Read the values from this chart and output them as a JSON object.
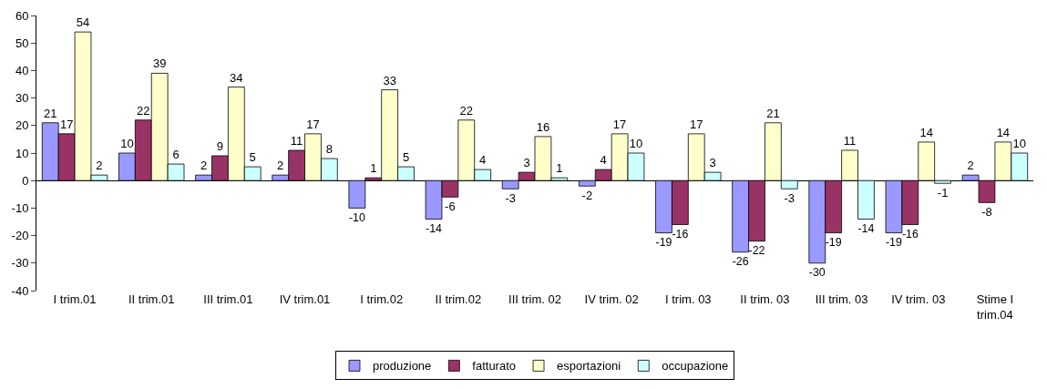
{
  "chart_data": {
    "type": "bar",
    "categories": [
      "I trim.01",
      "II trim.01",
      "III trim.01",
      "IV trim.01",
      "I trim.02",
      "II trim.02",
      "III trim. 02",
      "IV trim. 02",
      "I trim. 03",
      "II trim. 03",
      "III trim. 03",
      "IV trim. 03",
      "Stime I trim.04"
    ],
    "series": [
      {
        "name": "produzione",
        "color": "#9999ff",
        "values": [
          21,
          10,
          2,
          2,
          -10,
          -14,
          -3,
          -2,
          -19,
          -26,
          -30,
          -19,
          2
        ]
      },
      {
        "name": "fatturato",
        "color": "#993366",
        "values": [
          17,
          22,
          9,
          11,
          1,
          -6,
          3,
          4,
          -16,
          -22,
          -19,
          -16,
          -8
        ]
      },
      {
        "name": "esportazioni",
        "color": "#ffffcc",
        "values": [
          54,
          39,
          34,
          17,
          33,
          22,
          16,
          17,
          17,
          21,
          11,
          14,
          14
        ]
      },
      {
        "name": "occupazione",
        "color": "#ccffff",
        "values": [
          2,
          6,
          5,
          8,
          5,
          4,
          1,
          10,
          3,
          -3,
          -14,
          -1,
          10
        ]
      }
    ],
    "ylim": [
      -40,
      60
    ],
    "yticks": [
      -40,
      -30,
      -20,
      -10,
      0,
      10,
      20,
      30,
      40,
      50,
      60
    ],
    "legend": "bottom",
    "data_labels": true
  }
}
